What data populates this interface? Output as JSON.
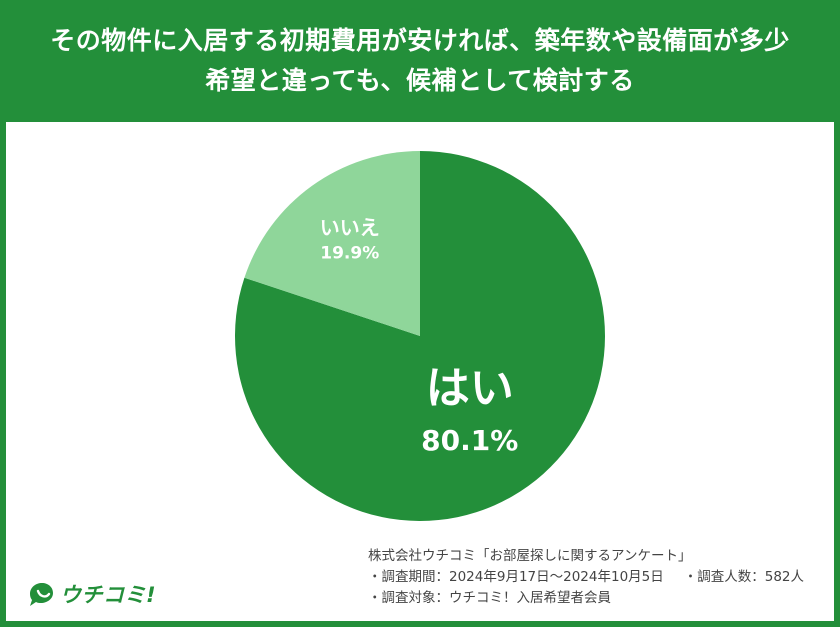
{
  "header": {
    "title_line1": "その物件に入居する初期費用が安ければ、築年数や設備面が多少",
    "title_line2": "希望と違っても、候補として検討する"
  },
  "chart_data": {
    "type": "pie",
    "title": "その物件に入居する初期費用が安ければ、築年数や設備面が多少希望と違っても、候補として検討する",
    "slices": [
      {
        "label": "はい",
        "value": 80.1,
        "display": "80.1%",
        "color": "#238f3a"
      },
      {
        "label": "いいえ",
        "value": 19.9,
        "display": "19.9%",
        "color": "#8fd69a"
      }
    ]
  },
  "footer": {
    "source": "株式会社ウチコミ「お部屋探しに関するアンケート」",
    "period": "・調査期間：2024年9月17日〜2024年10月5日",
    "respondents": "・調査人数：582人",
    "target": "・調査対象：ウチコミ！入居希望者会員"
  },
  "logo": {
    "text": "ウチコミ!",
    "color": "#238f3a",
    "icon": "speech-bubble-icon"
  },
  "colors": {
    "background": "#238f3a",
    "panel": "#ffffff"
  }
}
